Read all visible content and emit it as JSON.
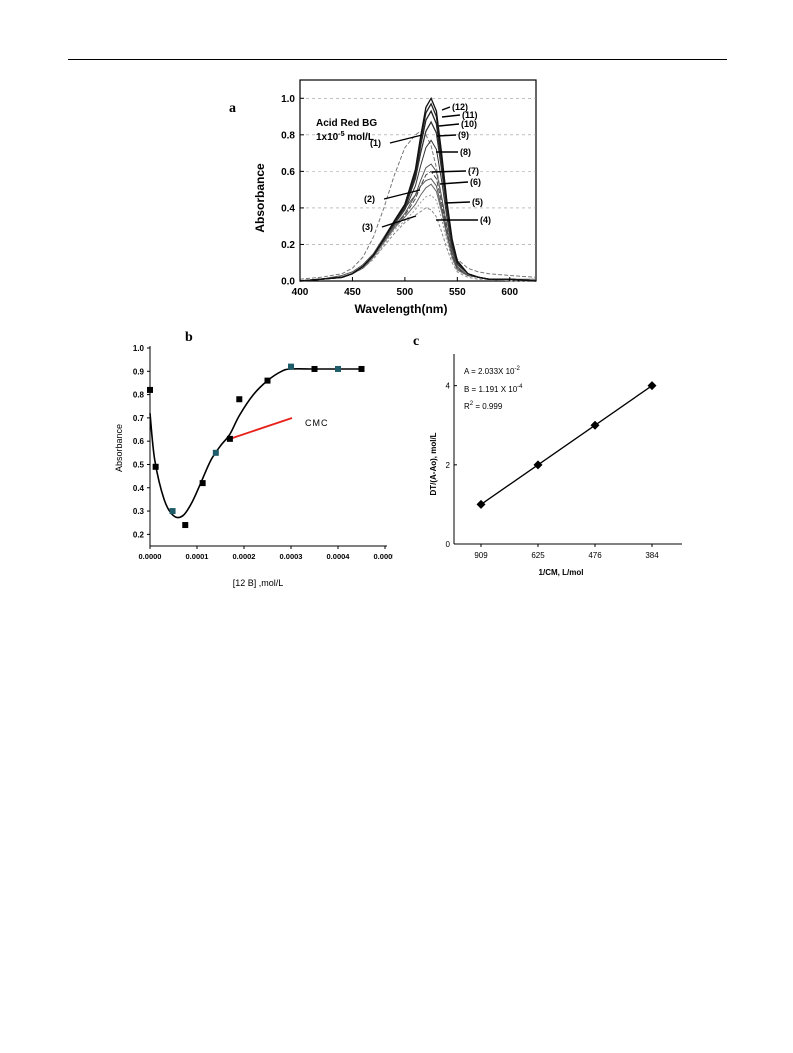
{
  "panels": {
    "a": "a",
    "b": "b",
    "c": "c"
  },
  "chart_data": [
    {
      "type": "line",
      "title": "",
      "xlabel": "Wavelength(nm)",
      "ylabel": "Absorbance",
      "xlim": [
        400,
        625
      ],
      "ylim": [
        0,
        1.1
      ],
      "xticks": [
        400,
        450,
        500,
        550,
        600
      ],
      "yticks": [
        0.0,
        0.2,
        0.4,
        0.6,
        0.8,
        1.0
      ],
      "annotation": {
        "line1": "Acid Red BG",
        "line2_prefix": "1x10",
        "line2_exp": "-5",
        "line2_suffix": " mol/L"
      },
      "x": [
        400,
        420,
        440,
        450,
        460,
        470,
        480,
        490,
        500,
        510,
        515,
        520,
        525,
        530,
        535,
        540,
        545,
        550,
        560,
        570,
        580,
        600,
        625
      ],
      "series": [
        {
          "name": "(1)",
          "peak": 0.82,
          "values": [
            0.01,
            0.02,
            0.04,
            0.07,
            0.13,
            0.24,
            0.4,
            0.58,
            0.73,
            0.8,
            0.82,
            0.8,
            0.74,
            0.62,
            0.46,
            0.31,
            0.19,
            0.12,
            0.07,
            0.05,
            0.04,
            0.03,
            0.02
          ]
        },
        {
          "name": "(2)",
          "peak": 0.56,
          "values": [
            0.0,
            0.01,
            0.03,
            0.05,
            0.09,
            0.15,
            0.24,
            0.33,
            0.4,
            0.47,
            0.52,
            0.55,
            0.56,
            0.52,
            0.4,
            0.26,
            0.14,
            0.07,
            0.03,
            0.02,
            0.01,
            0.01,
            0.01
          ]
        },
        {
          "name": "(3)",
          "peak": 0.4,
          "values": [
            0.0,
            0.01,
            0.02,
            0.04,
            0.07,
            0.12,
            0.19,
            0.26,
            0.32,
            0.36,
            0.38,
            0.4,
            0.39,
            0.35,
            0.27,
            0.18,
            0.1,
            0.05,
            0.02,
            0.01,
            0.01,
            0.0,
            0.0
          ]
        },
        {
          "name": "(4)",
          "peak": 0.47,
          "values": [
            0.0,
            0.01,
            0.02,
            0.04,
            0.07,
            0.12,
            0.2,
            0.28,
            0.33,
            0.39,
            0.43,
            0.46,
            0.47,
            0.44,
            0.34,
            0.22,
            0.12,
            0.06,
            0.03,
            0.02,
            0.01,
            0.01,
            0.0
          ]
        },
        {
          "name": "(5)",
          "peak": 0.53,
          "values": [
            0.0,
            0.01,
            0.02,
            0.04,
            0.07,
            0.13,
            0.21,
            0.29,
            0.35,
            0.42,
            0.47,
            0.51,
            0.53,
            0.49,
            0.38,
            0.25,
            0.13,
            0.06,
            0.03,
            0.02,
            0.01,
            0.01,
            0.0
          ]
        },
        {
          "name": "(6)",
          "peak": 0.6,
          "values": [
            0.0,
            0.01,
            0.02,
            0.04,
            0.08,
            0.14,
            0.22,
            0.3,
            0.36,
            0.45,
            0.52,
            0.58,
            0.6,
            0.56,
            0.43,
            0.28,
            0.15,
            0.07,
            0.03,
            0.02,
            0.01,
            0.01,
            0.0
          ]
        },
        {
          "name": "(7)",
          "peak": 0.64,
          "values": [
            0.0,
            0.01,
            0.02,
            0.04,
            0.08,
            0.14,
            0.22,
            0.3,
            0.37,
            0.47,
            0.55,
            0.62,
            0.64,
            0.6,
            0.46,
            0.3,
            0.16,
            0.08,
            0.03,
            0.02,
            0.01,
            0.01,
            0.0
          ]
        },
        {
          "name": "(8)",
          "peak": 0.77,
          "values": [
            0.0,
            0.01,
            0.02,
            0.04,
            0.08,
            0.14,
            0.23,
            0.31,
            0.39,
            0.52,
            0.63,
            0.73,
            0.77,
            0.72,
            0.55,
            0.35,
            0.18,
            0.09,
            0.04,
            0.02,
            0.01,
            0.01,
            0.0
          ]
        },
        {
          "name": "(9)",
          "peak": 0.87,
          "values": [
            0.0,
            0.01,
            0.02,
            0.04,
            0.08,
            0.14,
            0.23,
            0.32,
            0.4,
            0.56,
            0.7,
            0.82,
            0.87,
            0.81,
            0.61,
            0.39,
            0.2,
            0.1,
            0.04,
            0.02,
            0.01,
            0.01,
            0.0
          ]
        },
        {
          "name": "(10)",
          "peak": 0.93,
          "values": [
            0.0,
            0.01,
            0.02,
            0.04,
            0.08,
            0.14,
            0.23,
            0.32,
            0.41,
            0.58,
            0.74,
            0.88,
            0.93,
            0.86,
            0.65,
            0.41,
            0.21,
            0.1,
            0.04,
            0.02,
            0.01,
            0.01,
            0.0
          ]
        },
        {
          "name": "(11)",
          "peak": 0.97,
          "values": [
            0.0,
            0.01,
            0.02,
            0.04,
            0.08,
            0.14,
            0.23,
            0.33,
            0.42,
            0.6,
            0.77,
            0.92,
            0.97,
            0.9,
            0.68,
            0.43,
            0.22,
            0.11,
            0.04,
            0.02,
            0.01,
            0.01,
            0.0
          ]
        },
        {
          "name": "(12)",
          "peak": 1.0,
          "values": [
            0.0,
            0.01,
            0.02,
            0.04,
            0.08,
            0.14,
            0.23,
            0.33,
            0.42,
            0.61,
            0.79,
            0.95,
            1.0,
            0.93,
            0.7,
            0.44,
            0.23,
            0.11,
            0.04,
            0.02,
            0.01,
            0.01,
            0.0
          ]
        }
      ]
    },
    {
      "type": "line",
      "title": "",
      "xlabel": "[12 B] ,mol/L",
      "ylabel": "Absorbance",
      "xlim": [
        0.0,
        0.0005
      ],
      "ylim": [
        0.15,
        1.0
      ],
      "xticks": [
        "0.0000",
        "0.0001",
        "0.0002",
        "0.0003",
        "0.0004",
        "0.0005"
      ],
      "yticks": [
        "0.2",
        "0.3",
        "0.4",
        "0.5",
        "0.6",
        "0.7",
        "0.8",
        "0.9",
        "1.0"
      ],
      "annotation": "CMC",
      "points": {
        "x": [
          0.0,
          1.2e-05,
          4.8e-05,
          7.5e-05,
          0.000112,
          0.00014,
          0.00017,
          0.00019,
          0.00025,
          0.0003,
          0.00035,
          0.0004,
          0.00045
        ],
        "y": [
          0.82,
          0.49,
          0.3,
          0.24,
          0.42,
          0.55,
          0.61,
          0.78,
          0.86,
          0.92,
          0.91,
          0.91,
          0.91
        ]
      },
      "curve": {
        "x": [
          0.0,
          1e-05,
          3e-05,
          5e-05,
          7e-05,
          9e-05,
          0.00011,
          0.00013,
          0.00015,
          0.00017,
          0.00019,
          0.00022,
          0.00025,
          0.00028,
          0.0003,
          0.00035,
          0.0004,
          0.00045
        ],
        "y": [
          0.72,
          0.52,
          0.35,
          0.28,
          0.28,
          0.34,
          0.43,
          0.52,
          0.58,
          0.63,
          0.71,
          0.8,
          0.86,
          0.9,
          0.91,
          0.91,
          0.91,
          0.91
        ]
      },
      "cmc_x": 0.00017
    },
    {
      "type": "scatter",
      "title": "",
      "xlabel": "1/CM, L/mol",
      "ylabel": "DT/(A-Ao), mol/L",
      "xticks": [
        "909",
        "625",
        "476",
        "384"
      ],
      "yticks": [
        "0",
        "2",
        "4"
      ],
      "ylim": [
        0,
        4.8
      ],
      "x": [
        "909",
        "625",
        "476",
        "384"
      ],
      "y": [
        1,
        2,
        3,
        4
      ],
      "stats": {
        "a_prefix": "A = 2.033X 10",
        "a_exp": "-2",
        "b_prefix": "B = 1.191 X 10",
        "b_exp": "-4",
        "r_prefix": "R",
        "r_exp": "2",
        "r_suffix": " = 0.999"
      }
    }
  ]
}
